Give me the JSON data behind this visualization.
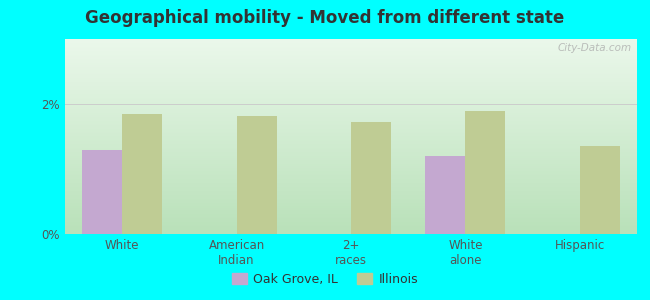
{
  "title": "Geographical mobility - Moved from different state",
  "categories": [
    "White",
    "American\nIndian",
    "2+\nraces",
    "White\nalone",
    "Hispanic"
  ],
  "oak_grove_values": [
    1.3,
    0.0,
    0.0,
    1.2,
    0.0
  ],
  "illinois_values": [
    1.85,
    1.82,
    1.72,
    1.9,
    1.35
  ],
  "oak_grove_color": "#c4a8d0",
  "illinois_color": "#bfcc94",
  "background_color_fig": "#00ffff",
  "ylim": [
    0,
    3.0
  ],
  "ytick_labels": [
    "0%",
    "2%"
  ],
  "bar_width": 0.35,
  "legend_oak_grove": "Oak Grove, IL",
  "legend_illinois": "Illinois",
  "watermark": "City-Data.com"
}
